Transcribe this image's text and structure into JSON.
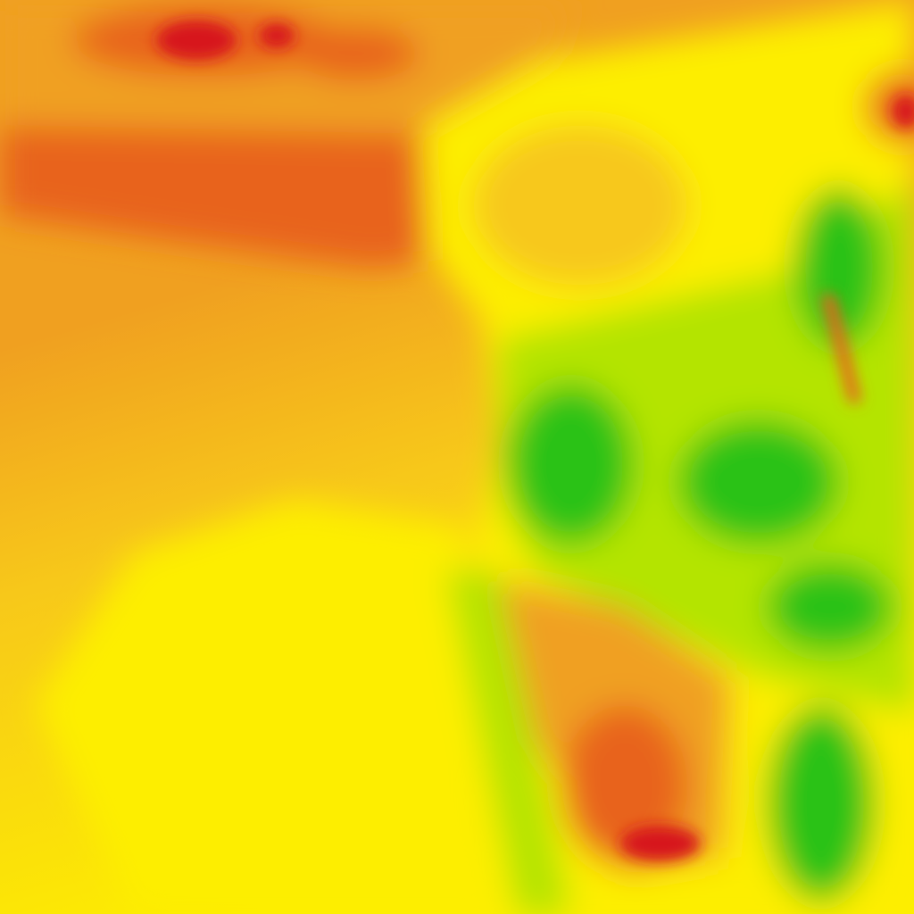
{
  "map": {
    "type": "heatmap-tile",
    "colormap": {
      "very_high": "#d7191c",
      "high": "#e8641f",
      "mid_high": "#f0a020",
      "mid": "#f7c81a",
      "mid_low": "#fdee00",
      "low": "#b4e400",
      "very_low": "#2bc214"
    }
  }
}
